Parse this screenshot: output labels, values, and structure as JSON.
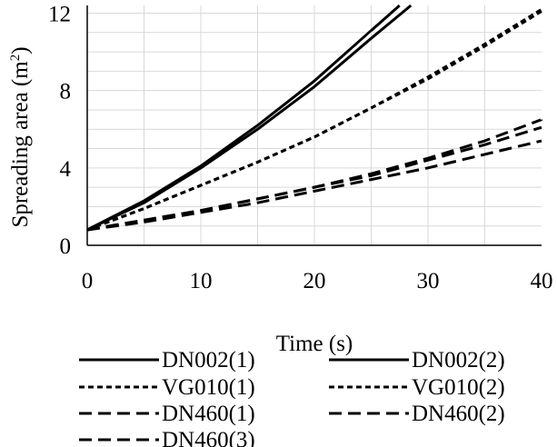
{
  "chart_data": {
    "type": "line",
    "title": "",
    "xlabel": "Time (s)",
    "ylabel_main": "Spreading area (m",
    "ylabel_sup": "2",
    "ylabel_close": ")",
    "xlim": [
      0,
      40
    ],
    "ylim": [
      0,
      12.4
    ],
    "x_ticks": [
      0,
      10,
      20,
      30,
      40
    ],
    "x_tick_labels": [
      "0",
      "10",
      "20",
      "30",
      "40"
    ],
    "y_ticks": [
      0,
      4,
      8,
      12
    ],
    "y_tick_labels": [
      "0",
      "4",
      "8",
      "12"
    ],
    "grid": true,
    "legend_position": "bottom",
    "x": [
      0,
      5,
      10,
      15,
      20,
      25,
      30,
      35,
      40
    ],
    "series": [
      {
        "name": "DN002(1)",
        "style": "solid",
        "x": [
          0,
          5,
          10,
          15,
          20,
          25,
          27.5
        ],
        "values": [
          0.8,
          2.3,
          4.1,
          6.2,
          8.5,
          11.1,
          12.4
        ]
      },
      {
        "name": "DN002(2)",
        "style": "solid",
        "x": [
          0,
          5,
          10,
          15,
          20,
          25,
          28.5
        ],
        "values": [
          0.8,
          2.2,
          4.0,
          6.0,
          8.2,
          10.7,
          12.4
        ]
      },
      {
        "name": "VG010(1)",
        "style": "short-dash",
        "x": [
          0,
          5,
          10,
          15,
          20,
          25,
          30,
          35,
          40
        ],
        "values": [
          0.8,
          1.9,
          3.1,
          4.3,
          5.6,
          7.1,
          8.6,
          10.3,
          12.1
        ]
      },
      {
        "name": "VG010(2)",
        "style": "short-dash",
        "x": [
          0,
          5,
          10,
          15,
          20,
          25,
          30,
          35,
          40
        ],
        "values": [
          0.8,
          1.9,
          3.1,
          4.3,
          5.6,
          7.1,
          8.7,
          10.4,
          12.2
        ]
      },
      {
        "name": "DN460(1)",
        "style": "long-dash",
        "x": [
          0,
          5,
          10,
          15,
          20,
          25,
          30,
          35,
          40
        ],
        "values": [
          0.8,
          1.3,
          1.8,
          2.4,
          3.0,
          3.7,
          4.5,
          5.4,
          6.5
        ]
      },
      {
        "name": "DN460(2)",
        "style": "long-dash",
        "x": [
          0,
          5,
          10,
          15,
          20,
          25,
          30,
          35,
          40
        ],
        "values": [
          0.8,
          1.2,
          1.7,
          2.2,
          2.8,
          3.4,
          4.0,
          4.7,
          5.4
        ]
      },
      {
        "name": "DN460(3)",
        "style": "long-dash",
        "x": [
          0,
          5,
          10,
          15,
          20,
          25,
          30,
          35,
          40
        ],
        "values": [
          0.8,
          1.3,
          1.8,
          2.4,
          3.0,
          3.6,
          4.4,
          5.2,
          6.1
        ]
      }
    ],
    "colors": {
      "line": "#000000",
      "grid": "#d9d9d9",
      "axis": "#000000"
    }
  }
}
